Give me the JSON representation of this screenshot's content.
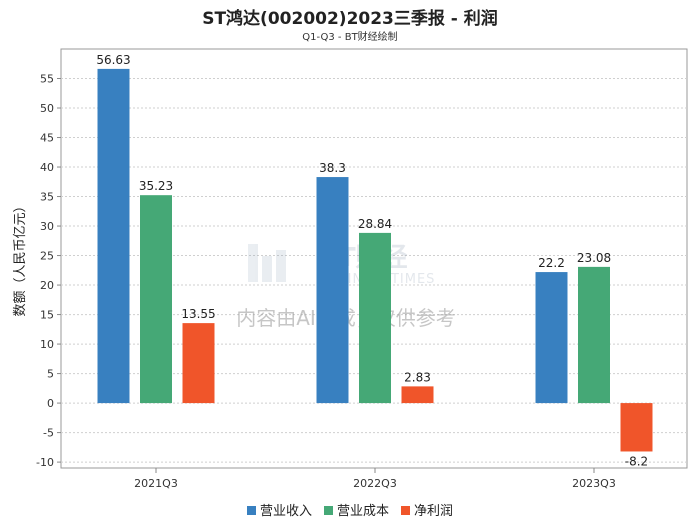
{
  "chart_data": {
    "type": "bar",
    "title": "ST鸿达(002002)2023三季报 - 利润",
    "subtitle": "Q1-Q3 - BT财经绘制",
    "xlabel": "",
    "ylabel": "数额（人民币亿元）",
    "categories": [
      "2021Q3",
      "2022Q3",
      "2023Q3"
    ],
    "ylim": [
      -11,
      60
    ],
    "yticks": [
      -10,
      -5,
      0,
      5,
      10,
      15,
      20,
      25,
      30,
      35,
      40,
      45,
      50,
      55
    ],
    "grid": true,
    "legend_position": "bottom",
    "series": [
      {
        "name": "营业收入",
        "color": "#3880c0",
        "values": [
          56.63,
          38.3,
          22.2
        ],
        "labels": [
          "56.63",
          "38.3",
          "22.2"
        ]
      },
      {
        "name": "营业成本",
        "color": "#45a876",
        "values": [
          35.23,
          28.84,
          23.08
        ],
        "labels": [
          "35.23",
          "28.84",
          "23.08"
        ]
      },
      {
        "name": "净利润",
        "color": "#f0552a",
        "values": [
          13.55,
          2.83,
          -8.2
        ],
        "labels": [
          "13.55",
          "2.83",
          "-8.2"
        ]
      }
    ]
  },
  "watermark": {
    "brand": "BT财经",
    "brand_en": "BUSINESSTIMES",
    "notice": "内容由AI生成，仅供参考"
  }
}
